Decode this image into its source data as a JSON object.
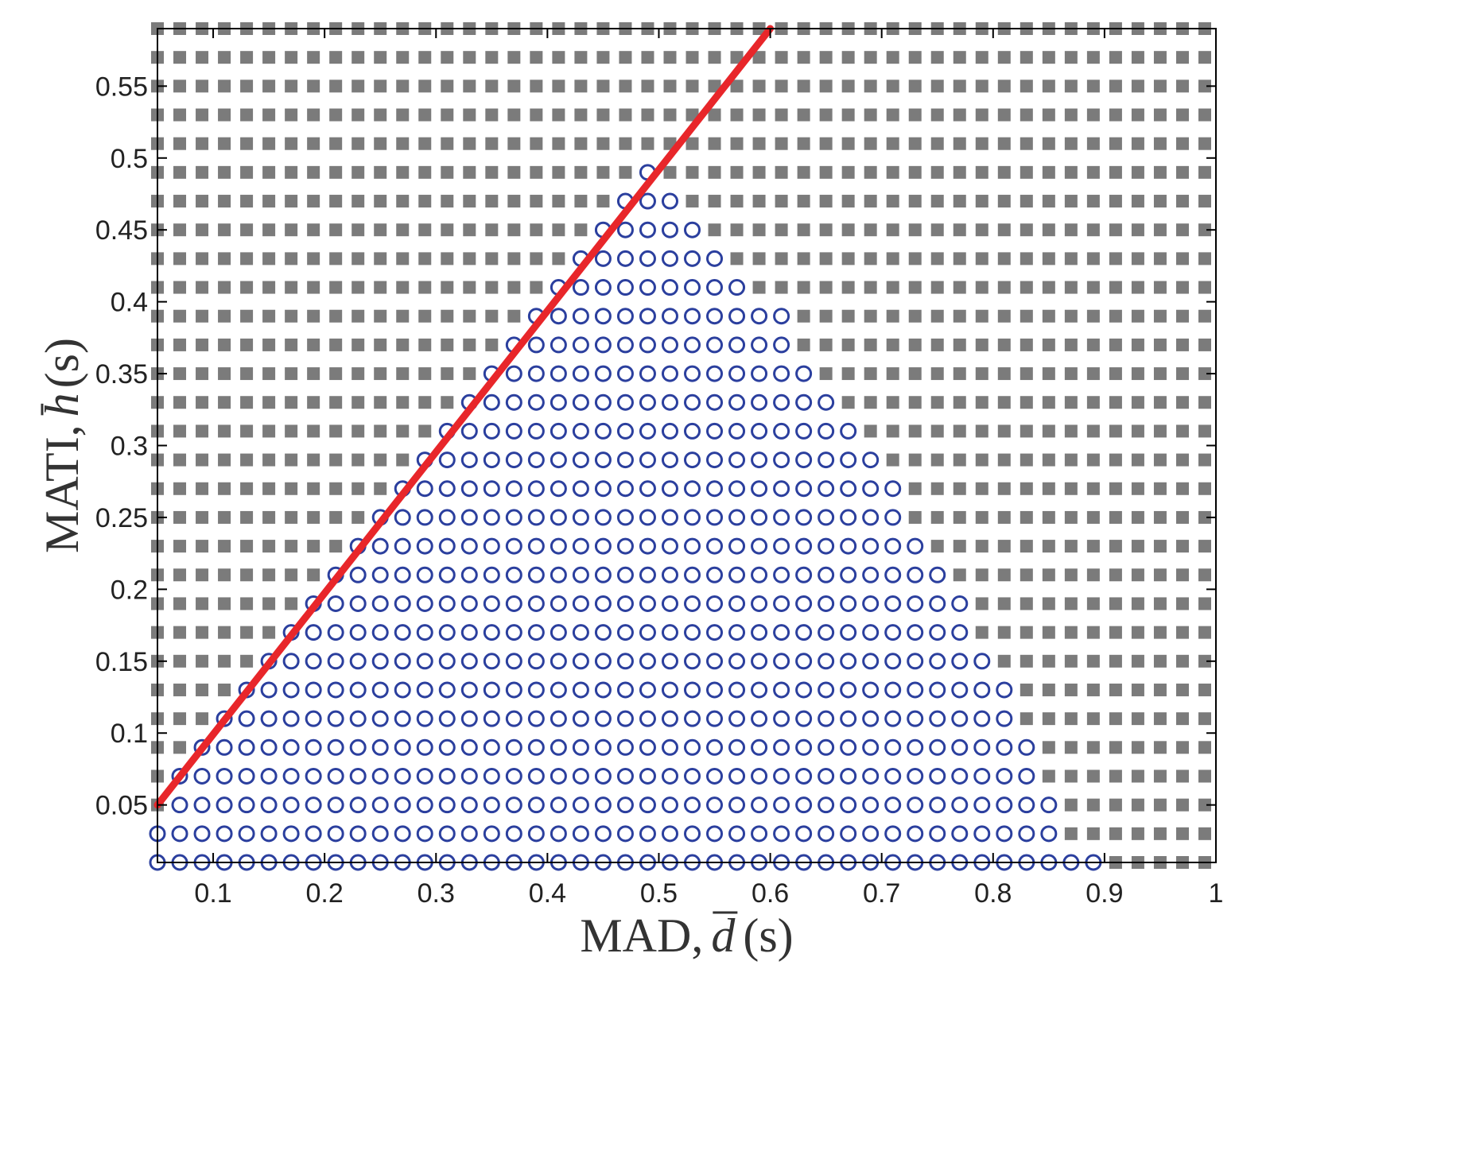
{
  "chart_data": {
    "type": "scatter",
    "xlabel": "MAD,",
    "xlabel_symbol": "d",
    "xlabel_unit": "(s)",
    "ylabel": "MATI,",
    "ylabel_symbol": "h",
    "ylabel_unit": "(s)",
    "xlim": [
      0.05,
      1.0
    ],
    "ylim": [
      0.01,
      0.59
    ],
    "x_ticks": [
      0.1,
      0.2,
      0.3,
      0.4,
      0.5,
      0.6,
      0.7,
      0.8,
      0.9,
      1
    ],
    "x_tick_labels": [
      "0.1",
      "0.2",
      "0.3",
      "0.4",
      "0.5",
      "0.6",
      "0.7",
      "0.8",
      "0.9",
      "1"
    ],
    "y_ticks": [
      0.05,
      0.1,
      0.15,
      0.2,
      0.25,
      0.3,
      0.35,
      0.4,
      0.45,
      0.5,
      0.55
    ],
    "y_tick_labels": [
      "0.05",
      "0.1",
      "0.15",
      "0.2",
      "0.25",
      "0.3",
      "0.35",
      "0.4",
      "0.45",
      "0.5",
      "0.55"
    ],
    "grid": false,
    "grid_x": {
      "start": 0.05,
      "step": 0.02,
      "count": 48
    },
    "grid_y": {
      "start": 0.01,
      "step": 0.02,
      "count": 30
    },
    "feasible_range_by_row": [
      [
        0.05,
        0.89
      ],
      [
        0.05,
        0.85
      ],
      [
        0.07,
        0.85
      ],
      [
        0.07,
        0.83
      ],
      [
        0.09,
        0.83
      ],
      [
        0.11,
        0.81
      ],
      [
        0.13,
        0.81
      ],
      [
        0.15,
        0.79
      ],
      [
        0.17,
        0.77
      ],
      [
        0.19,
        0.77
      ],
      [
        0.21,
        0.75
      ],
      [
        0.23,
        0.73
      ],
      [
        0.25,
        0.71
      ],
      [
        0.27,
        0.71
      ],
      [
        0.29,
        0.69
      ],
      [
        0.31,
        0.67
      ],
      [
        0.33,
        0.65
      ],
      [
        0.35,
        0.63
      ],
      [
        0.37,
        0.61
      ],
      [
        0.39,
        0.61
      ],
      [
        0.41,
        0.57
      ],
      [
        0.43,
        0.55
      ],
      [
        0.45,
        0.53
      ],
      [
        0.47,
        0.51
      ],
      [
        0.49,
        0.49
      ],
      null,
      null,
      null,
      null,
      null
    ],
    "series": [
      {
        "marker": "circle-open",
        "color": "#2b3f9e"
      },
      {
        "marker": "square-filled",
        "color": "#7b7b7b"
      }
    ],
    "line": {
      "x": [
        0.05,
        0.6
      ],
      "y": [
        0.05,
        0.59
      ],
      "color": "#e8262a"
    }
  }
}
